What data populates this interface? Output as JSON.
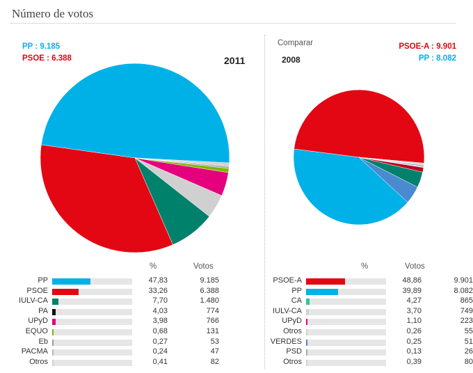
{
  "header": {
    "title": "Número de votos"
  },
  "colors": {
    "PP": "#00b1e8",
    "PSOE": "#e30613",
    "IULV-CA": "#00816b",
    "PA": "#111111",
    "UPyD": "#e5007e",
    "EQUO": "#7ab800",
    "Eb": "#a0a0a0",
    "PACMA": "#bbbbbb",
    "Otros": "#d0d0d0",
    "CA": "#4a8ad0",
    "VERDES": "#5a7dbf",
    "PSD": "#9aaac0"
  },
  "chart_data": [
    {
      "type": "pie",
      "title": "2011",
      "leaders": [
        {
          "text": "PP : 9.185",
          "color": "#00b1e8"
        },
        {
          "text": "PSOE : 6.388",
          "color": "#e30613"
        }
      ],
      "table_headers": {
        "pct": "%",
        "votes": "Votos"
      },
      "slices": [
        {
          "name": "PP",
          "pct": 47.83,
          "pct_label": "47,83",
          "votes": "9.185",
          "color": "#00b1e8"
        },
        {
          "name": "PSOE",
          "pct": 33.26,
          "pct_label": "33,26",
          "votes": "6.388",
          "color": "#e30613"
        },
        {
          "name": "IULV-CA",
          "pct": 7.7,
          "pct_label": "7,70",
          "votes": "1.480",
          "color": "#00816b"
        },
        {
          "name": "PA",
          "pct": 4.03,
          "pct_label": "4,03",
          "votes": "774",
          "color": "#d0d0d0"
        },
        {
          "name": "UPyD",
          "pct": 3.98,
          "pct_label": "3,98",
          "votes": "766",
          "color": "#e5007e"
        },
        {
          "name": "EQUO",
          "pct": 0.68,
          "pct_label": "0,68",
          "votes": "131",
          "color": "#7ab800"
        },
        {
          "name": "Eb",
          "pct": 0.27,
          "pct_label": "0,27",
          "votes": "53",
          "color": "#a0a0a0"
        },
        {
          "name": "PACMA",
          "pct": 0.24,
          "pct_label": "0,24",
          "votes": "47",
          "color": "#bbbbbb"
        },
        {
          "name": "Otros",
          "pct": 0.41,
          "pct_label": "0,41",
          "votes": "82",
          "color": "#d0d0d0"
        }
      ],
      "bar_colors": {
        "PA": "#111111"
      }
    },
    {
      "type": "pie",
      "title": "2008",
      "compare_label": "Comparar",
      "leaders": [
        {
          "text": "PSOE-A : 9.901",
          "color": "#e30613"
        },
        {
          "text": "PP : 8.082",
          "color": "#00b1e8"
        }
      ],
      "table_headers": {
        "pct": "%",
        "votes": "Votos"
      },
      "slices": [
        {
          "name": "PSOE-A",
          "pct": 48.86,
          "pct_label": "48,86",
          "votes": "9.901",
          "color": "#e30613"
        },
        {
          "name": "PP",
          "pct": 39.89,
          "pct_label": "39,89",
          "votes": "8.082",
          "color": "#00b1e8"
        },
        {
          "name": "CA",
          "pct": 4.27,
          "pct_label": "4,27",
          "votes": "865",
          "color": "#4a8ad0"
        },
        {
          "name": "IULV-CA",
          "pct": 3.7,
          "pct_label": "3,70",
          "votes": "749",
          "color": "#00816b"
        },
        {
          "name": "UPyD",
          "pct": 1.1,
          "pct_label": "1,10",
          "votes": "223",
          "color": "#c0001a"
        },
        {
          "name": "Otros",
          "pct": 0.26,
          "pct_label": "0,26",
          "votes": "55",
          "color": "#d0d0d0"
        },
        {
          "name": "VERDES",
          "pct": 0.25,
          "pct_label": "0,25",
          "votes": "51",
          "color": "#5a7dbf"
        },
        {
          "name": "PSD",
          "pct": 0.13,
          "pct_label": "0,13",
          "votes": "26",
          "color": "#9aaac0"
        },
        {
          "name": "Otros",
          "pct": 0.39,
          "pct_label": "0,39",
          "votes": "80",
          "color": "#d0d0d0"
        }
      ],
      "bar_colors": {
        "CA": "#2ec4a0",
        "IULV-CA": "#d0d0d0",
        "UPyD": "#e5007e"
      }
    }
  ]
}
